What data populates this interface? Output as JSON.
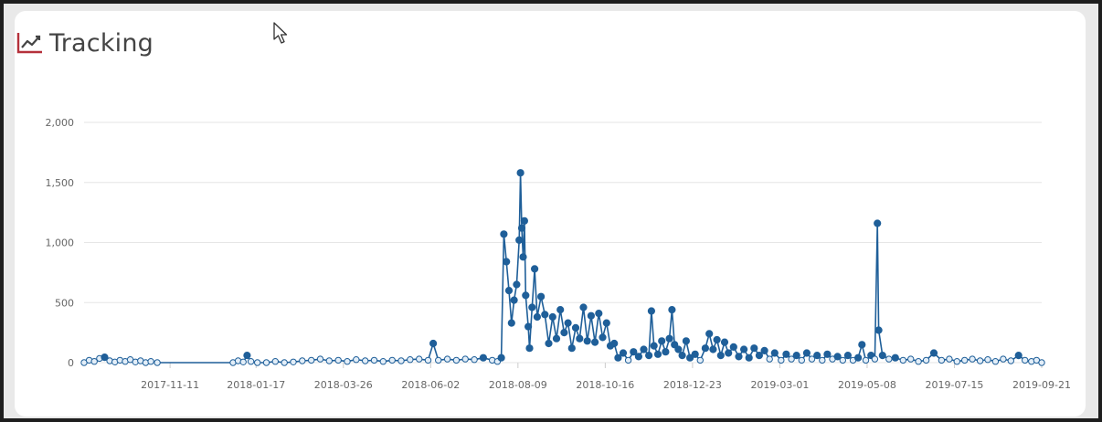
{
  "header": {
    "title": "Tracking",
    "icon": "line-chart-icon"
  },
  "colors": {
    "series": "#1f5f99",
    "series_fill": "#e3eef8",
    "grid": "#e6e6e6",
    "icon_accent": "#b5313b"
  },
  "chart_data": {
    "type": "line",
    "title": "",
    "xlabel": "",
    "ylabel": "",
    "ylim": [
      0,
      2000
    ],
    "yticks": [
      0,
      500,
      1000,
      1500,
      2000
    ],
    "ytick_labels": [
      "0",
      "500",
      "1,000",
      "1,500",
      "2,000"
    ],
    "x_axis_type": "date",
    "xlim": [
      "2017-09-05",
      "2019-09-21"
    ],
    "xticks": [
      "2017-11-11",
      "2018-01-17",
      "2018-03-26",
      "2018-06-02",
      "2018-08-09",
      "2018-10-16",
      "2018-12-23",
      "2019-03-01",
      "2019-05-08",
      "2019-07-15",
      "2019-09-21"
    ],
    "grid": true,
    "legend": false,
    "markers": true,
    "series": [
      {
        "points": [
          [
            "2017-09-05",
            0
          ],
          [
            "2017-09-09",
            20
          ],
          [
            "2017-09-13",
            10
          ],
          [
            "2017-09-17",
            35
          ],
          [
            "2017-09-21",
            45
          ],
          [
            "2017-09-25",
            15
          ],
          [
            "2017-09-29",
            5
          ],
          [
            "2017-10-03",
            20
          ],
          [
            "2017-10-07",
            10
          ],
          [
            "2017-10-11",
            25
          ],
          [
            "2017-10-15",
            5
          ],
          [
            "2017-10-19",
            15
          ],
          [
            "2017-10-23",
            0
          ],
          [
            "2017-10-27",
            10
          ],
          [
            "2017-11-01",
            0
          ],
          [
            "2017-12-30",
            0
          ],
          [
            "2018-01-03",
            15
          ],
          [
            "2018-01-07",
            5
          ],
          [
            "2018-01-10",
            60
          ],
          [
            "2018-01-13",
            10
          ],
          [
            "2018-01-18",
            0
          ],
          [
            "2018-01-25",
            0
          ],
          [
            "2018-02-01",
            10
          ],
          [
            "2018-02-08",
            0
          ],
          [
            "2018-02-15",
            5
          ],
          [
            "2018-02-22",
            15
          ],
          [
            "2018-03-01",
            20
          ],
          [
            "2018-03-08",
            30
          ],
          [
            "2018-03-15",
            15
          ],
          [
            "2018-03-22",
            20
          ],
          [
            "2018-03-29",
            10
          ],
          [
            "2018-04-05",
            25
          ],
          [
            "2018-04-12",
            15
          ],
          [
            "2018-04-19",
            20
          ],
          [
            "2018-04-26",
            10
          ],
          [
            "2018-05-03",
            20
          ],
          [
            "2018-05-10",
            15
          ],
          [
            "2018-05-17",
            25
          ],
          [
            "2018-05-24",
            30
          ],
          [
            "2018-05-31",
            20
          ],
          [
            "2018-06-04",
            160
          ],
          [
            "2018-06-08",
            20
          ],
          [
            "2018-06-15",
            30
          ],
          [
            "2018-06-22",
            20
          ],
          [
            "2018-06-29",
            30
          ],
          [
            "2018-07-06",
            25
          ],
          [
            "2018-07-13",
            40
          ],
          [
            "2018-07-20",
            20
          ],
          [
            "2018-07-24",
            10
          ],
          [
            "2018-07-27",
            40
          ],
          [
            "2018-07-29",
            1070
          ],
          [
            "2018-07-31",
            840
          ],
          [
            "2018-08-02",
            600
          ],
          [
            "2018-08-04",
            330
          ],
          [
            "2018-08-06",
            520
          ],
          [
            "2018-08-08",
            650
          ],
          [
            "2018-08-10",
            1020
          ],
          [
            "2018-08-11",
            1580
          ],
          [
            "2018-08-12",
            1120
          ],
          [
            "2018-08-13",
            880
          ],
          [
            "2018-08-14",
            1180
          ],
          [
            "2018-08-15",
            560
          ],
          [
            "2018-08-17",
            300
          ],
          [
            "2018-08-18",
            120
          ],
          [
            "2018-08-20",
            460
          ],
          [
            "2018-08-22",
            780
          ],
          [
            "2018-08-24",
            380
          ],
          [
            "2018-08-27",
            550
          ],
          [
            "2018-08-30",
            400
          ],
          [
            "2018-09-02",
            160
          ],
          [
            "2018-09-05",
            380
          ],
          [
            "2018-09-08",
            200
          ],
          [
            "2018-09-11",
            440
          ],
          [
            "2018-09-14",
            250
          ],
          [
            "2018-09-17",
            330
          ],
          [
            "2018-09-20",
            120
          ],
          [
            "2018-09-23",
            290
          ],
          [
            "2018-09-26",
            200
          ],
          [
            "2018-09-29",
            460
          ],
          [
            "2018-10-02",
            180
          ],
          [
            "2018-10-05",
            390
          ],
          [
            "2018-10-08",
            170
          ],
          [
            "2018-10-11",
            410
          ],
          [
            "2018-10-14",
            210
          ],
          [
            "2018-10-17",
            330
          ],
          [
            "2018-10-20",
            140
          ],
          [
            "2018-10-23",
            160
          ],
          [
            "2018-10-26",
            40
          ],
          [
            "2018-10-30",
            80
          ],
          [
            "2018-11-03",
            20
          ],
          [
            "2018-11-07",
            90
          ],
          [
            "2018-11-11",
            50
          ],
          [
            "2018-11-15",
            110
          ],
          [
            "2018-11-19",
            60
          ],
          [
            "2018-11-21",
            430
          ],
          [
            "2018-11-23",
            140
          ],
          [
            "2018-11-26",
            70
          ],
          [
            "2018-11-29",
            180
          ],
          [
            "2018-12-02",
            90
          ],
          [
            "2018-12-05",
            200
          ],
          [
            "2018-12-07",
            440
          ],
          [
            "2018-12-09",
            150
          ],
          [
            "2018-12-12",
            110
          ],
          [
            "2018-12-15",
            60
          ],
          [
            "2018-12-18",
            180
          ],
          [
            "2018-12-21",
            40
          ],
          [
            "2018-12-25",
            70
          ],
          [
            "2018-12-29",
            20
          ],
          [
            "2019-01-02",
            120
          ],
          [
            "2019-01-05",
            240
          ],
          [
            "2019-01-08",
            110
          ],
          [
            "2019-01-11",
            190
          ],
          [
            "2019-01-14",
            60
          ],
          [
            "2019-01-17",
            170
          ],
          [
            "2019-01-20",
            80
          ],
          [
            "2019-01-24",
            130
          ],
          [
            "2019-01-28",
            50
          ],
          [
            "2019-02-01",
            110
          ],
          [
            "2019-02-05",
            40
          ],
          [
            "2019-02-09",
            120
          ],
          [
            "2019-02-13",
            60
          ],
          [
            "2019-02-17",
            100
          ],
          [
            "2019-02-21",
            30
          ],
          [
            "2019-02-25",
            80
          ],
          [
            "2019-03-02",
            20
          ],
          [
            "2019-03-06",
            70
          ],
          [
            "2019-03-10",
            30
          ],
          [
            "2019-03-14",
            60
          ],
          [
            "2019-03-18",
            20
          ],
          [
            "2019-03-22",
            80
          ],
          [
            "2019-03-26",
            30
          ],
          [
            "2019-03-30",
            60
          ],
          [
            "2019-04-03",
            20
          ],
          [
            "2019-04-07",
            70
          ],
          [
            "2019-04-11",
            30
          ],
          [
            "2019-04-15",
            50
          ],
          [
            "2019-04-19",
            20
          ],
          [
            "2019-04-23",
            60
          ],
          [
            "2019-04-27",
            20
          ],
          [
            "2019-05-01",
            40
          ],
          [
            "2019-05-04",
            150
          ],
          [
            "2019-05-07",
            20
          ],
          [
            "2019-05-11",
            60
          ],
          [
            "2019-05-14",
            30
          ],
          [
            "2019-05-16",
            1160
          ],
          [
            "2019-05-17",
            270
          ],
          [
            "2019-05-20",
            60
          ],
          [
            "2019-05-25",
            30
          ],
          [
            "2019-05-30",
            40
          ],
          [
            "2019-06-05",
            20
          ],
          [
            "2019-06-11",
            30
          ],
          [
            "2019-06-17",
            10
          ],
          [
            "2019-06-23",
            20
          ],
          [
            "2019-06-29",
            80
          ],
          [
            "2019-07-05",
            20
          ],
          [
            "2019-07-11",
            30
          ],
          [
            "2019-07-17",
            10
          ],
          [
            "2019-07-23",
            20
          ],
          [
            "2019-07-29",
            30
          ],
          [
            "2019-08-04",
            15
          ],
          [
            "2019-08-10",
            25
          ],
          [
            "2019-08-16",
            10
          ],
          [
            "2019-08-22",
            30
          ],
          [
            "2019-08-28",
            15
          ],
          [
            "2019-09-03",
            60
          ],
          [
            "2019-09-08",
            20
          ],
          [
            "2019-09-13",
            10
          ],
          [
            "2019-09-17",
            20
          ],
          [
            "2019-09-21",
            0
          ]
        ]
      }
    ]
  }
}
